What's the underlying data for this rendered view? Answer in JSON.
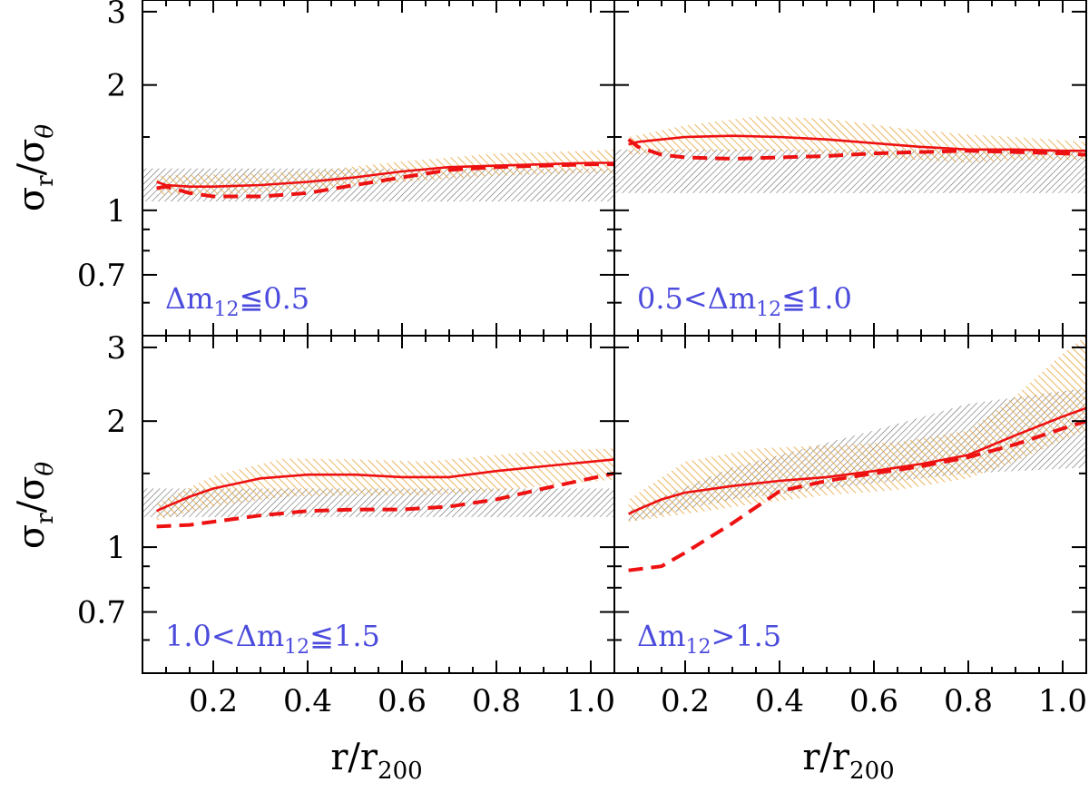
{
  "chart_data": {
    "type": "line",
    "xlabel": {
      "main": "r/r",
      "sub": "200"
    },
    "ylabel": {
      "sigma": "σ",
      "r_sub": "r",
      "slash": "/",
      "sigma2": "σ",
      "theta_sub": "θ"
    },
    "xlim": [
      0.05,
      1.05
    ],
    "ylim": [
      0.5,
      3.2
    ],
    "yscale": "log",
    "x_ticks": [
      0.2,
      0.4,
      0.6,
      0.8,
      1.0
    ],
    "x_tick_labels": [
      "0.2",
      "0.4",
      "0.6",
      "0.8",
      "1.0"
    ],
    "y_ticks": [
      0.7,
      1,
      2,
      3
    ],
    "y_tick_labels": [
      "0.7",
      "1",
      "2",
      "3"
    ],
    "y_minor_ticks": [
      0.6,
      0.8,
      0.9,
      1.5
    ],
    "colors": {
      "line": "#ee1111",
      "orange_band": "#e8a33a",
      "gray_band": "#6a6a6a",
      "label": "#4b4bdd"
    },
    "panels": [
      {
        "label": {
          "pre": "",
          "delta": "Δm",
          "sub": "12",
          "post": "≦0.5"
        },
        "solid": {
          "x": [
            0.08,
            0.1,
            0.15,
            0.2,
            0.3,
            0.4,
            0.5,
            0.6,
            0.7,
            0.8,
            0.9,
            1.0,
            1.05
          ],
          "y": [
            1.17,
            1.15,
            1.14,
            1.14,
            1.15,
            1.17,
            1.2,
            1.24,
            1.27,
            1.28,
            1.29,
            1.3,
            1.3
          ]
        },
        "dashed": {
          "x": [
            0.08,
            0.1,
            0.15,
            0.2,
            0.3,
            0.4,
            0.5,
            0.6,
            0.7,
            0.8,
            0.9,
            1.0,
            1.05
          ],
          "y": [
            1.13,
            1.14,
            1.1,
            1.08,
            1.08,
            1.1,
            1.15,
            1.2,
            1.25,
            1.27,
            1.28,
            1.29,
            1.29
          ]
        },
        "orange_band": {
          "x": [
            0.08,
            0.2,
            0.4,
            0.6,
            0.8,
            1.0,
            1.05
          ],
          "lower": [
            1.09,
            1.09,
            1.12,
            1.17,
            1.21,
            1.23,
            1.23
          ],
          "upper": [
            1.21,
            1.22,
            1.24,
            1.31,
            1.37,
            1.39,
            1.4
          ]
        },
        "gray_band": {
          "x": [
            0.05,
            1.05
          ],
          "lower": [
            1.05,
            1.05
          ],
          "upper": [
            1.26,
            1.26
          ]
        }
      },
      {
        "label": {
          "pre": "0.5<",
          "delta": "Δm",
          "sub": "12",
          "post": "≦1.0"
        },
        "solid": {
          "x": [
            0.08,
            0.1,
            0.15,
            0.2,
            0.3,
            0.4,
            0.5,
            0.6,
            0.7,
            0.8,
            0.9,
            1.0,
            1.05
          ],
          "y": [
            1.44,
            1.46,
            1.48,
            1.5,
            1.51,
            1.5,
            1.48,
            1.45,
            1.42,
            1.4,
            1.4,
            1.39,
            1.39
          ]
        },
        "dashed": {
          "x": [
            0.08,
            0.1,
            0.15,
            0.2,
            0.3,
            0.4,
            0.5,
            0.6,
            0.7,
            0.8,
            0.9,
            1.0,
            1.05
          ],
          "y": [
            1.48,
            1.42,
            1.36,
            1.34,
            1.33,
            1.34,
            1.35,
            1.37,
            1.38,
            1.39,
            1.38,
            1.37,
            1.36
          ]
        },
        "orange_band": {
          "x": [
            0.08,
            0.2,
            0.35,
            0.5,
            0.65,
            0.8,
            0.9,
            1.05
          ],
          "lower": [
            1.36,
            1.38,
            1.39,
            1.37,
            1.33,
            1.3,
            1.32,
            1.32
          ],
          "upper": [
            1.5,
            1.6,
            1.68,
            1.66,
            1.58,
            1.52,
            1.5,
            1.46
          ]
        },
        "gray_band": {
          "x": [
            0.05,
            1.05
          ],
          "lower": [
            1.1,
            1.1
          ],
          "upper": [
            1.4,
            1.4
          ]
        }
      },
      {
        "label": {
          "pre": "1.0<",
          "delta": "Δm",
          "sub": "12",
          "post": "≦1.5"
        },
        "solid": {
          "x": [
            0.08,
            0.1,
            0.15,
            0.2,
            0.3,
            0.4,
            0.5,
            0.6,
            0.7,
            0.8,
            0.9,
            1.0,
            1.05
          ],
          "y": [
            1.22,
            1.25,
            1.32,
            1.38,
            1.46,
            1.49,
            1.49,
            1.47,
            1.47,
            1.52,
            1.56,
            1.6,
            1.62
          ]
        },
        "dashed": {
          "x": [
            0.08,
            0.15,
            0.2,
            0.3,
            0.4,
            0.5,
            0.6,
            0.7,
            0.8,
            0.9,
            1.0,
            1.05
          ],
          "y": [
            1.12,
            1.13,
            1.15,
            1.19,
            1.22,
            1.23,
            1.23,
            1.25,
            1.3,
            1.38,
            1.46,
            1.5
          ]
        },
        "orange_band": {
          "x": [
            0.08,
            0.2,
            0.35,
            0.5,
            0.65,
            0.8,
            0.9,
            1.05
          ],
          "lower": [
            1.16,
            1.25,
            1.32,
            1.33,
            1.33,
            1.36,
            1.4,
            1.45
          ],
          "upper": [
            1.27,
            1.48,
            1.63,
            1.62,
            1.6,
            1.66,
            1.7,
            1.72
          ]
        },
        "gray_band": {
          "x": [
            0.05,
            1.05
          ],
          "lower": [
            1.18,
            1.18
          ],
          "upper": [
            1.38,
            1.38
          ]
        }
      },
      {
        "label": {
          "pre": "",
          "delta": "Δm",
          "sub": "12",
          "post": ">1.5"
        },
        "solid": {
          "x": [
            0.08,
            0.1,
            0.15,
            0.2,
            0.3,
            0.4,
            0.5,
            0.6,
            0.7,
            0.8,
            0.9,
            1.0,
            1.05
          ],
          "y": [
            1.2,
            1.23,
            1.3,
            1.35,
            1.4,
            1.44,
            1.47,
            1.52,
            1.58,
            1.66,
            1.85,
            2.05,
            2.15
          ]
        },
        "dashed": {
          "x": [
            0.08,
            0.15,
            0.2,
            0.3,
            0.4,
            0.5,
            0.6,
            0.7,
            0.8,
            0.9,
            1.0,
            1.05
          ],
          "y": [
            0.88,
            0.9,
            0.97,
            1.14,
            1.36,
            1.44,
            1.5,
            1.56,
            1.64,
            1.76,
            1.92,
            2.0
          ]
        },
        "orange_band": {
          "x": [
            0.08,
            0.2,
            0.35,
            0.5,
            0.65,
            0.8,
            0.9,
            1.0,
            1.05
          ],
          "lower": [
            1.15,
            1.2,
            1.27,
            1.33,
            1.37,
            1.46,
            1.6,
            1.8,
            1.9
          ],
          "upper": [
            1.3,
            1.6,
            1.72,
            1.75,
            1.78,
            1.9,
            2.3,
            2.9,
            3.2
          ]
        },
        "gray_band": {
          "x": [
            0.08,
            0.3,
            0.6,
            0.8,
            1.05
          ],
          "lower": [
            1.15,
            1.3,
            1.42,
            1.5,
            1.55
          ],
          "upper": [
            1.22,
            1.55,
            1.9,
            2.2,
            2.4
          ]
        }
      }
    ]
  }
}
